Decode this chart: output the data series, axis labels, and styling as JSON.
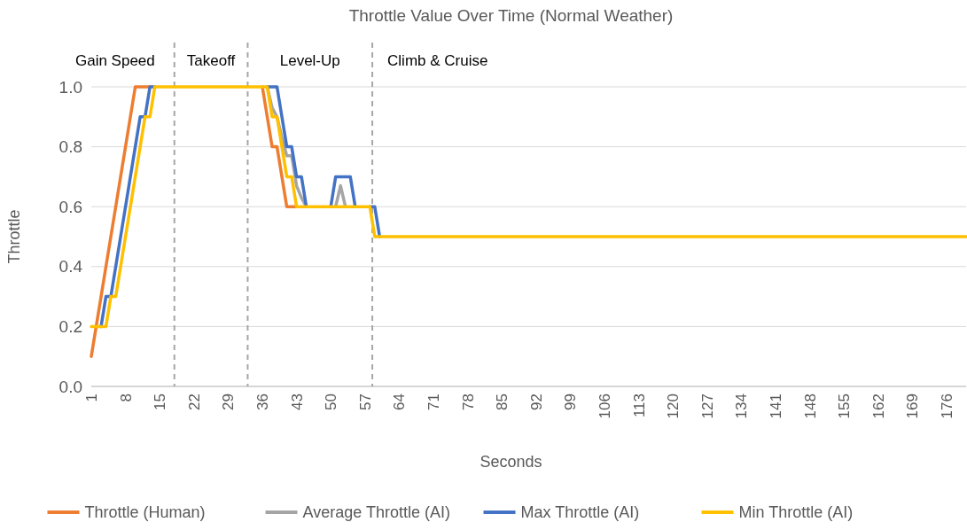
{
  "chart_data": {
    "type": "line",
    "title": "Throttle Value Over Time (Normal Weather)",
    "xlabel": "Seconds",
    "ylabel": "Throttle",
    "x": [
      1,
      2,
      3,
      4,
      5,
      6,
      7,
      8,
      9,
      10,
      11,
      12,
      13,
      14,
      15,
      16,
      17,
      18,
      19,
      20,
      21,
      22,
      23,
      24,
      25,
      26,
      27,
      28,
      29,
      30,
      31,
      32,
      33,
      34,
      35,
      36,
      37,
      38,
      39,
      40,
      41,
      42,
      43,
      44,
      45,
      46,
      47,
      48,
      49,
      50,
      51,
      52,
      53,
      54,
      55,
      56,
      57,
      58,
      59,
      60,
      61,
      62,
      63,
      64,
      65,
      66,
      67,
      68,
      69,
      70,
      71,
      72,
      73,
      74,
      75,
      76,
      77,
      78,
      79,
      80,
      81,
      82,
      83,
      84,
      85,
      86,
      87,
      88,
      89,
      90,
      91,
      92,
      93,
      94,
      95,
      96,
      97,
      98,
      99,
      100,
      101,
      102,
      103,
      104,
      105,
      106,
      107,
      108,
      109,
      110,
      111,
      112,
      113,
      114,
      115,
      116,
      117,
      118,
      119,
      120,
      121,
      122,
      123,
      124,
      125,
      126,
      127,
      128,
      129,
      130,
      131,
      132,
      133,
      134,
      135,
      136,
      137,
      138,
      139,
      140,
      141,
      142,
      143,
      144,
      145,
      146,
      147,
      148,
      149,
      150,
      151,
      152,
      153,
      154,
      155,
      156,
      157,
      158,
      159,
      160,
      161,
      162,
      163,
      164,
      165,
      166,
      167,
      168,
      169,
      170,
      171,
      172,
      173,
      174,
      175,
      176,
      177,
      178,
      179,
      180
    ],
    "xlim": [
      1,
      180
    ],
    "xticks": [
      1,
      8,
      15,
      22,
      29,
      36,
      43,
      50,
      57,
      64,
      71,
      78,
      85,
      92,
      99,
      106,
      113,
      120,
      127,
      134,
      141,
      148,
      155,
      162,
      169,
      176
    ],
    "ylim": [
      0,
      1
    ],
    "yticks": [
      {
        "value": 0,
        "label": "0.0"
      },
      {
        "value": 0.2,
        "label": "0.2"
      },
      {
        "value": 0.4,
        "label": "0.4"
      },
      {
        "value": 0.6,
        "label": "0.6"
      },
      {
        "value": 0.8,
        "label": "0.8"
      },
      {
        "value": 1,
        "label": "1.0"
      }
    ],
    "grid": "y",
    "legend": "bottom",
    "marker": "none",
    "line_style": "solid",
    "ref_lines": [
      {
        "axis": "x",
        "value": 18,
        "color": "#a6a6a6",
        "line_style": "dashed"
      },
      {
        "axis": "x",
        "value": 33,
        "color": "#a6a6a6",
        "line_style": "dashed"
      },
      {
        "axis": "x",
        "value": 58.5,
        "color": "#a6a6a6",
        "line_style": "dashed"
      }
    ],
    "annotations": [
      "Gain Speed",
      "Takeoff",
      "Level-Up",
      "Climb & Cruise"
    ],
    "series": [
      {
        "name": "Throttle (Human)",
        "color": "#ed7d31",
        "values": [
          0.1,
          0.2,
          0.3,
          0.4,
          0.5,
          0.6,
          0.7,
          0.8,
          0.9,
          1,
          1,
          1,
          1,
          null,
          null,
          null,
          null,
          null,
          null,
          null,
          null,
          null,
          null,
          null,
          null,
          null,
          null,
          null,
          null,
          null,
          null,
          null,
          null,
          null,
          null,
          1,
          0.9,
          0.8,
          0.8,
          0.7,
          0.6,
          0.6,
          0.6,
          null,
          null,
          null,
          null,
          null,
          null,
          null,
          null,
          null,
          null,
          null,
          null,
          null,
          null,
          null,
          null,
          null,
          null,
          null,
          null,
          null,
          null,
          null,
          null,
          null,
          null,
          null,
          null,
          null,
          null,
          null,
          null,
          null,
          null,
          null,
          null,
          null,
          null,
          null,
          null,
          null,
          null,
          null,
          null,
          null,
          null,
          null,
          null,
          null,
          null,
          null,
          null,
          null,
          null,
          null,
          null,
          null,
          null,
          null,
          null,
          null,
          null,
          null,
          null,
          null,
          null,
          null,
          null,
          null,
          null,
          null,
          null,
          null,
          null,
          null,
          null,
          null,
          null,
          null,
          null,
          null,
          null,
          null,
          null,
          null,
          null,
          null,
          null,
          null,
          null,
          null,
          null,
          null,
          null,
          null,
          null,
          null,
          null,
          null,
          null,
          null,
          null,
          null,
          null,
          null,
          null,
          null,
          null,
          null,
          null,
          null,
          null,
          null,
          null,
          null,
          null,
          null,
          null,
          null,
          null,
          null,
          null,
          null,
          null,
          null,
          null,
          null,
          null,
          null,
          null,
          null,
          null,
          null,
          null,
          null,
          null,
          null
        ]
      },
      {
        "name": "Average Throttle (AI)",
        "color": "#a5a5a5",
        "values": [
          null,
          null,
          null,
          null,
          null,
          null,
          null,
          null,
          null,
          null,
          null,
          null,
          null,
          null,
          null,
          null,
          null,
          null,
          null,
          null,
          null,
          null,
          null,
          null,
          null,
          null,
          null,
          null,
          null,
          null,
          null,
          null,
          null,
          null,
          null,
          null,
          1,
          0.93,
          0.9,
          0.83,
          0.77,
          0.77,
          0.67,
          0.63,
          0.6,
          null,
          null,
          null,
          null,
          null,
          0.6,
          0.67,
          0.6,
          null,
          null,
          null,
          null,
          null,
          null,
          null,
          null,
          null,
          null,
          null,
          null,
          null,
          null,
          null,
          null,
          null,
          null,
          null,
          null,
          null,
          null,
          null,
          null,
          null,
          null,
          null,
          null,
          null,
          null,
          null,
          null,
          null,
          null,
          null,
          null,
          null,
          null,
          null,
          null,
          null,
          null,
          null,
          null,
          null,
          null,
          null,
          null,
          null,
          null,
          null,
          null,
          null,
          null,
          null,
          null,
          null,
          null,
          null,
          null,
          null,
          null,
          null,
          null,
          null,
          null,
          null,
          null,
          null,
          null,
          null,
          null,
          null,
          null,
          null,
          null,
          null,
          null,
          null,
          null,
          null,
          null,
          null,
          null,
          null,
          null,
          null,
          null,
          null,
          null,
          null,
          null,
          null,
          null,
          null,
          null,
          null,
          null,
          null,
          null,
          null,
          null,
          null,
          null,
          null,
          null,
          null,
          null,
          null,
          null,
          null,
          null,
          null,
          null,
          null,
          null,
          null,
          null,
          null,
          null,
          null,
          null,
          null,
          null,
          null,
          null,
          null
        ]
      },
      {
        "name": "Max Throttle (AI)",
        "color": "#4472c4",
        "values": [
          null,
          null,
          0.2,
          0.3,
          0.3,
          0.4,
          0.5,
          0.6,
          0.7,
          0.8,
          0.9,
          0.9,
          1,
          1,
          null,
          null,
          null,
          null,
          null,
          null,
          null,
          null,
          null,
          null,
          null,
          null,
          null,
          null,
          null,
          null,
          null,
          null,
          null,
          null,
          null,
          null,
          1,
          1,
          1,
          0.9,
          0.8,
          0.8,
          0.7,
          0.7,
          0.6,
          null,
          null,
          null,
          null,
          0.6,
          0.7,
          0.7,
          0.7,
          0.7,
          0.6,
          null,
          null,
          0.6,
          0.6,
          0.5,
          null,
          null,
          null,
          null,
          null,
          null,
          null,
          null,
          null,
          null,
          null,
          null,
          null,
          null,
          null,
          null,
          null,
          null,
          null,
          null,
          null,
          null,
          null,
          null,
          null,
          null,
          null,
          null,
          null,
          null,
          null,
          null,
          null,
          null,
          null,
          null,
          null,
          null,
          null,
          null,
          null,
          null,
          null,
          null,
          null,
          null,
          null,
          null,
          null,
          null,
          null,
          null,
          null,
          null,
          null,
          null,
          null,
          null,
          null,
          null,
          null,
          null,
          null,
          null,
          null,
          null,
          null,
          null,
          null,
          null,
          null,
          null,
          null,
          null,
          null,
          null,
          null,
          null,
          null,
          null,
          null,
          null,
          null,
          null,
          null,
          null,
          null,
          null,
          null,
          null,
          null,
          null,
          null,
          null,
          null,
          null,
          null,
          null,
          null,
          null,
          null,
          null,
          null,
          null,
          null,
          null,
          null,
          null,
          null,
          null,
          null,
          null,
          null,
          null,
          null,
          null,
          null,
          null,
          null,
          null
        ]
      },
      {
        "name": "Min Throttle (AI)",
        "color": "#ffc000",
        "values": [
          0.2,
          0.2,
          0.2,
          0.2,
          0.3,
          0.3,
          0.4,
          0.5,
          0.6,
          0.7,
          0.8,
          0.9,
          0.9,
          1,
          1,
          1,
          1,
          1,
          1,
          1,
          1,
          1,
          1,
          1,
          1,
          1,
          1,
          1,
          1,
          1,
          1,
          1,
          1,
          1,
          1,
          1,
          1,
          0.9,
          0.9,
          0.8,
          0.7,
          0.7,
          0.6,
          0.6,
          0.6,
          0.6,
          0.6,
          0.6,
          0.6,
          0.6,
          0.6,
          0.6,
          0.6,
          0.6,
          0.6,
          0.6,
          0.6,
          0.6,
          0.5,
          0.5,
          0.5,
          0.5,
          0.5,
          0.5,
          0.5,
          0.5,
          0.5,
          0.5,
          0.5,
          0.5,
          0.5,
          0.5,
          0.5,
          0.5,
          0.5,
          0.5,
          0.5,
          0.5,
          0.5,
          0.5,
          0.5,
          0.5,
          0.5,
          0.5,
          0.5,
          0.5,
          0.5,
          0.5,
          0.5,
          0.5,
          0.5,
          0.5,
          0.5,
          0.5,
          0.5,
          0.5,
          0.5,
          0.5,
          0.5,
          0.5,
          0.5,
          0.5,
          0.5,
          0.5,
          0.5,
          0.5,
          0.5,
          0.5,
          0.5,
          0.5,
          0.5,
          0.5,
          0.5,
          0.5,
          0.5,
          0.5,
          0.5,
          0.5,
          0.5,
          0.5,
          0.5,
          0.5,
          0.5,
          0.5,
          0.5,
          0.5,
          0.5,
          0.5,
          0.5,
          0.5,
          0.5,
          0.5,
          0.5,
          0.5,
          0.5,
          0.5,
          0.5,
          0.5,
          0.5,
          0.5,
          0.5,
          0.5,
          0.5,
          0.5,
          0.5,
          0.5,
          0.5,
          0.5,
          0.5,
          0.5,
          0.5,
          0.5,
          0.5,
          0.5,
          0.5,
          0.5,
          0.5,
          0.5,
          0.5,
          0.5,
          0.5,
          0.5,
          0.5,
          0.5,
          0.5,
          0.5,
          0.5,
          0.5,
          0.5,
          0.5,
          0.5,
          0.5,
          0.5,
          0.5,
          0.5,
          0.5,
          0.5,
          0.5,
          0.5,
          0.5
        ]
      }
    ]
  }
}
